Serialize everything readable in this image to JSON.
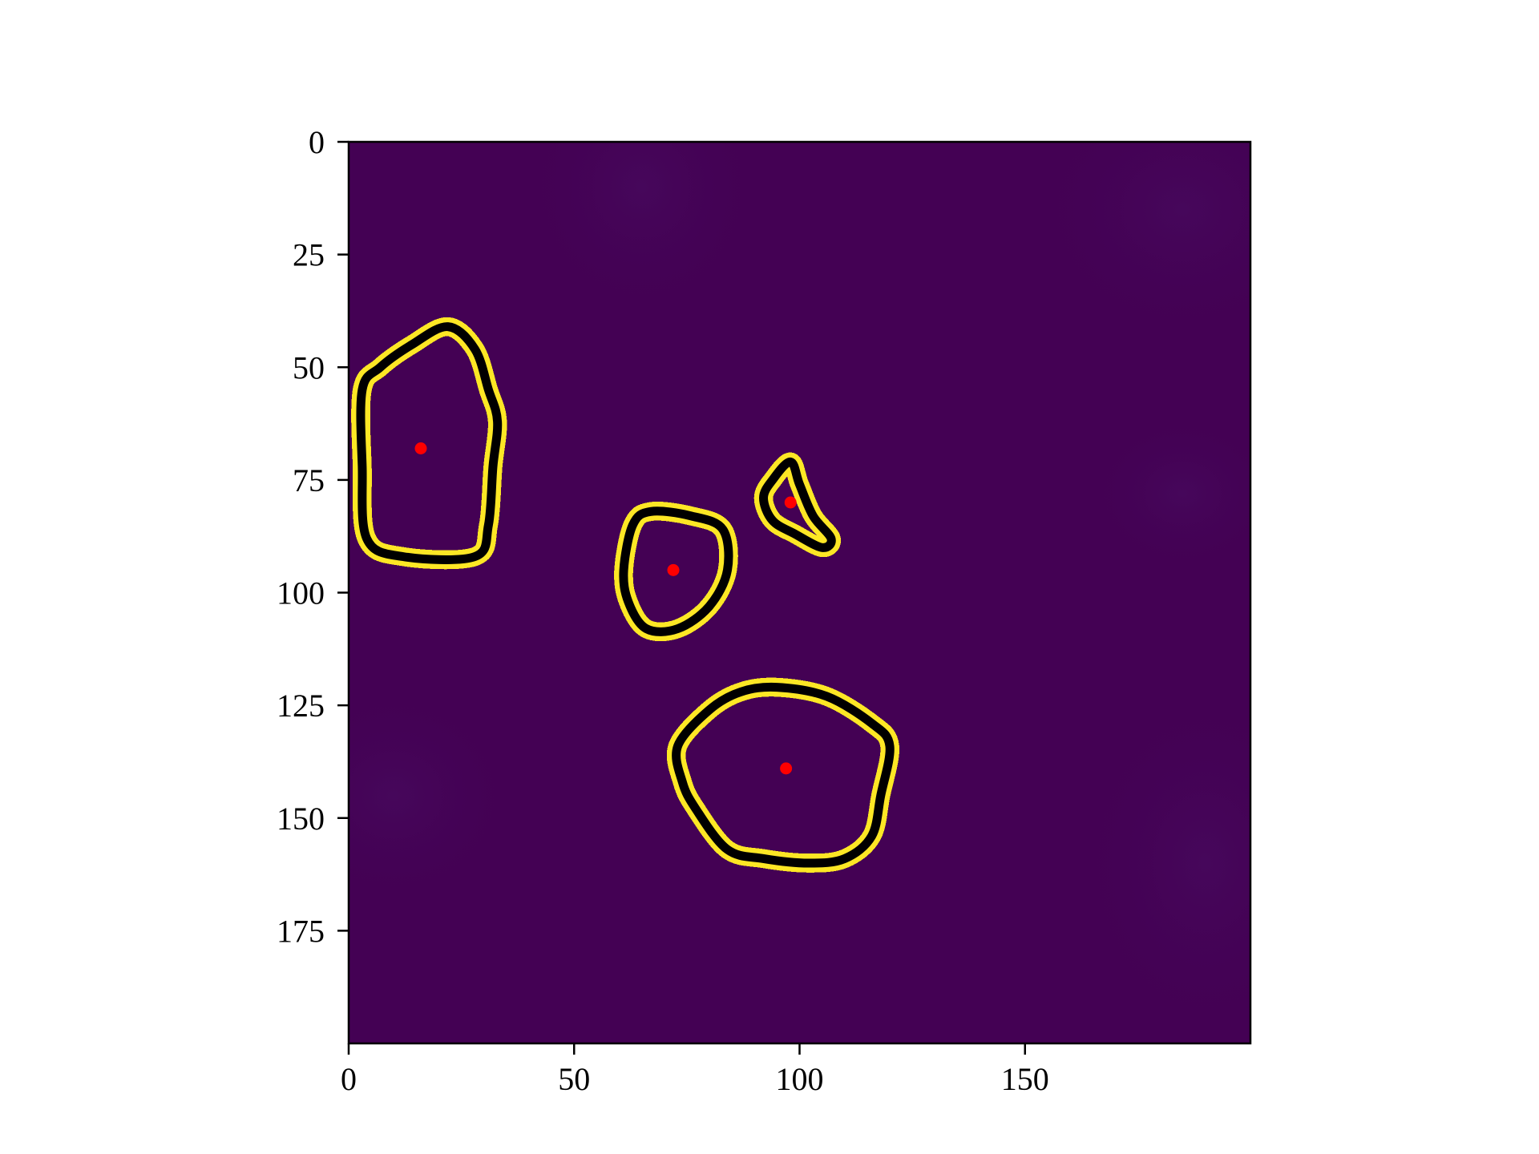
{
  "chart_data": {
    "type": "heatmap",
    "title": "",
    "xlabel": "",
    "ylabel": "",
    "image_shape": [
      200,
      200
    ],
    "xlim": [
      0,
      200
    ],
    "ylim": [
      200,
      0
    ],
    "y_axis_inverted": true,
    "x_ticks": [
      0,
      50,
      100,
      150
    ],
    "y_ticks": [
      0,
      25,
      50,
      75,
      100,
      125,
      150,
      175
    ],
    "x_tick_labels": [
      "0",
      "50",
      "100",
      "150"
    ],
    "y_tick_labels": [
      "0",
      "25",
      "50",
      "75",
      "100",
      "125",
      "150",
      "175"
    ],
    "colormap": "viridis",
    "background_color": "#440154",
    "mask_color": "#fde725",
    "contour_color": "#000000",
    "centroid_color": "#ff0000",
    "grid": false,
    "legend": "none",
    "regions": [
      {
        "centroid": [
          16,
          68
        ],
        "contour": [
          [
            22,
            41
          ],
          [
            28,
            46
          ],
          [
            31,
            55
          ],
          [
            33,
            62
          ],
          [
            32,
            72
          ],
          [
            31,
            85
          ],
          [
            28,
            92
          ],
          [
            12,
            92
          ],
          [
            4,
            88
          ],
          [
            3,
            72
          ],
          [
            3,
            55
          ],
          [
            7,
            50
          ],
          [
            14,
            45
          ]
        ]
      },
      {
        "centroid": [
          72,
          95
        ],
        "contour": [
          [
            67,
            82
          ],
          [
            76,
            83
          ],
          [
            83,
            86
          ],
          [
            84,
            95
          ],
          [
            80,
            103
          ],
          [
            73,
            108
          ],
          [
            66,
            108
          ],
          [
            62,
            102
          ],
          [
            61,
            95
          ],
          [
            63,
            85
          ]
        ]
      },
      {
        "centroid": [
          98,
          80
        ],
        "contour": [
          [
            98,
            71
          ],
          [
            100,
            76
          ],
          [
            103,
            83
          ],
          [
            107,
            88
          ],
          [
            105,
            90
          ],
          [
            99,
            87
          ],
          [
            94,
            84
          ],
          [
            92,
            79
          ],
          [
            94,
            75
          ]
        ]
      },
      {
        "centroid": [
          97,
          139
        ],
        "contour": [
          [
            95,
            121
          ],
          [
            106,
            123
          ],
          [
            116,
            129
          ],
          [
            120,
            134
          ],
          [
            118,
            145
          ],
          [
            116,
            154
          ],
          [
            110,
            159
          ],
          [
            102,
            160
          ],
          [
            92,
            159
          ],
          [
            84,
            157
          ],
          [
            77,
            148
          ],
          [
            74,
            142
          ],
          [
            73,
            134
          ],
          [
            80,
            126
          ],
          [
            87,
            122
          ]
        ]
      }
    ]
  }
}
